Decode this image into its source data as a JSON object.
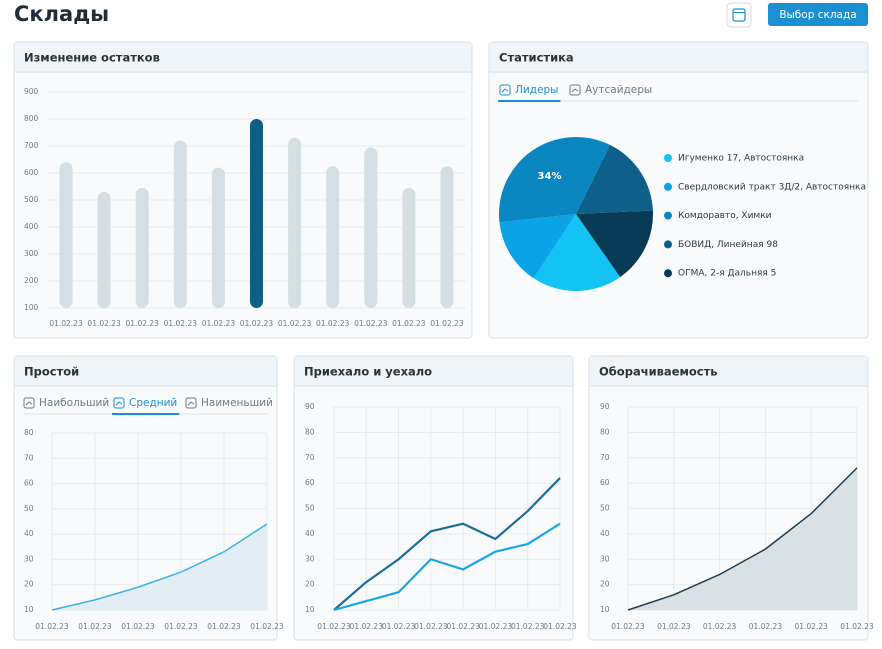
{
  "header": {
    "title": "Склады",
    "button": "Выбор склада"
  },
  "chart_data": [
    {
      "type": "bar",
      "title": "Изменение остатков",
      "categories": [
        "01.02.23",
        "01.02.23",
        "01.02.23",
        "01.02.23",
        "01.02.23",
        "01.02.23",
        "01.02.23",
        "01.02.23",
        "01.02.23",
        "01.02.23",
        "01.02.23"
      ],
      "values": [
        640,
        530,
        545,
        720,
        620,
        800,
        730,
        625,
        695,
        545,
        625
      ],
      "colors": [
        "#d5dfe3",
        "#d5dfe3",
        "#d5dfe3",
        "#d5dfe3",
        "#d5dfe3",
        "#0d5f86",
        "#d5dfe3",
        "#d5dfe3",
        "#d5dfe3",
        "#d5dfe3",
        "#d5dfe3"
      ],
      "ylim": [
        100,
        900
      ],
      "yticks": [
        100,
        200,
        300,
        400,
        500,
        600,
        700,
        800,
        900
      ],
      "grid": true
    },
    {
      "type": "pie",
      "title": "Статистика",
      "tabs": [
        "Лидеры",
        "Аутсайдеры"
      ],
      "active_tab": 0,
      "categories": [
        "Игуменко 17, Автостоянка",
        "Свердловский тракт 3Д/2, Автостоянка",
        "Комдоравто, Химки",
        "БОВИД, Линейная 98",
        "ОГМА, 2-я Дальняя 5"
      ],
      "values": [
        19,
        14,
        34,
        17,
        16
      ],
      "value_labels": [
        null,
        null,
        "34%",
        null,
        null
      ],
      "colors": [
        "#12c3f3",
        "#0aa3e6",
        "#0a86c0",
        "#0e5f8a",
        "#063a55"
      ]
    },
    {
      "type": "area",
      "title": "Простой",
      "tabs": [
        "Наибольший",
        "Средний",
        "Наименьший"
      ],
      "active_tab": 1,
      "categories": [
        "01.02.23",
        "01.02.23",
        "01.02.23",
        "01.02.23",
        "01.02.23",
        "01.02.23"
      ],
      "series": [
        {
          "color": "#3bb4e6",
          "fill": "#e2eef3",
          "values": [
            10,
            14,
            19,
            25,
            33,
            44
          ]
        }
      ],
      "ylim": [
        10,
        80
      ],
      "yticks": [
        10,
        20,
        30,
        40,
        50,
        60,
        70,
        80
      ],
      "grid": true
    },
    {
      "type": "line",
      "title": "Приехало и уехало",
      "categories": [
        "01.02.23",
        "01.02.23",
        "01.02.23",
        "01.02.23",
        "01.02.23",
        "01.02.23",
        "01.02.23",
        "01.02.23"
      ],
      "series": [
        {
          "color": "#1a6e99",
          "values": [
            10,
            21,
            30,
            41,
            44,
            38,
            49,
            62
          ]
        },
        {
          "color": "#1aa8e0",
          "values": [
            10,
            13.5,
            17,
            30,
            26,
            33,
            36,
            44
          ]
        }
      ],
      "ylim": [
        10,
        90
      ],
      "yticks": [
        10,
        20,
        30,
        40,
        50,
        60,
        70,
        80,
        90
      ],
      "grid": true
    },
    {
      "type": "area",
      "title": "Оборачиваемость",
      "categories": [
        "01.02.23",
        "01.02.23",
        "01.02.23",
        "01.02.23",
        "01.02.23",
        "01.02.23"
      ],
      "series": [
        {
          "color": "#1d3d52",
          "fill": "#d9e1e5",
          "values": [
            10,
            16,
            24,
            34,
            48,
            66
          ]
        }
      ],
      "ylim": [
        10,
        90
      ],
      "yticks": [
        10,
        20,
        30,
        40,
        50,
        60,
        70,
        80,
        90
      ],
      "grid": true
    }
  ]
}
